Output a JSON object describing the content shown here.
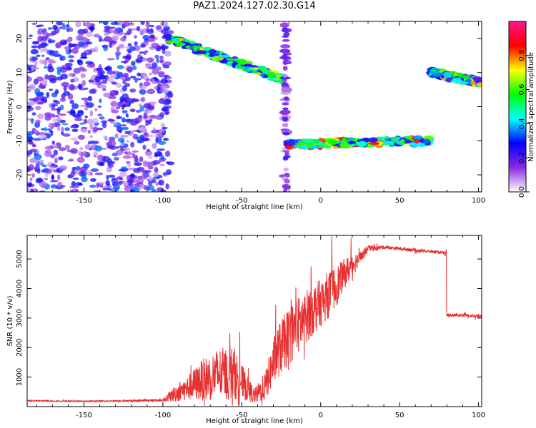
{
  "page_title": "PAZ1.2024.127.02.30.G14",
  "chart_data": [
    {
      "type": "heatmap",
      "title": "PAZ1.2024.127.02.30.G14",
      "xlabel": "Height of straight line (km)",
      "ylabel": "Frequency (Hz)",
      "xlim": [
        -186,
        102
      ],
      "ylim": [
        -25,
        25
      ],
      "xticks": [
        -150,
        -100,
        -50,
        0,
        50,
        100
      ],
      "yticks": [
        -20,
        -10,
        0,
        10,
        20
      ],
      "grid": false,
      "colorbar": {
        "label": "Normalized spectral amplitude",
        "range": [
          0,
          1
        ],
        "ticks": [
          0.0,
          0.2,
          0.4,
          0.6,
          0.8
        ],
        "colormap": [
          "#ffffff",
          "#8a2be2",
          "#0000ff",
          "#00ffff",
          "#00ff00",
          "#ffff00",
          "#ff0000",
          "#ff1493"
        ]
      },
      "features": [
        {
          "region": "scattered noise",
          "x": [
            -186,
            -95
          ],
          "freq": [
            -25,
            25
          ],
          "amplitude": 0.25
        },
        {
          "region": "descending track",
          "x": [
            -97,
            -23
          ],
          "freq": [
            20,
            8
          ],
          "amplitude": 0.75
        },
        {
          "region": "vertical streak",
          "x": [
            -22,
            -22
          ],
          "freq": [
            -25,
            25
          ],
          "amplitude": 0.2
        },
        {
          "region": "horizontal track",
          "x": [
            -22,
            70
          ],
          "freq": [
            -11,
            -10
          ],
          "amplitude": 0.85
        },
        {
          "region": "upper-right track",
          "x": [
            70,
            102
          ],
          "freq": [
            10,
            7
          ],
          "amplitude": 0.75
        }
      ]
    },
    {
      "type": "line",
      "xlabel": "Height of straight line (km)",
      "ylabel": "SNR (10 * v/v)",
      "xlim": [
        -186,
        102
      ],
      "ylim": [
        0,
        5800
      ],
      "xticks": [
        -150,
        -100,
        -50,
        0,
        50,
        100
      ],
      "yticks": [
        1000,
        2000,
        3000,
        4000,
        5000
      ],
      "grid": false,
      "color": "#e83030",
      "x": [
        -186,
        -150,
        -120,
        -100,
        -92,
        -85,
        -75,
        -65,
        -55,
        -48,
        -42,
        -35,
        -28,
        -20,
        -15,
        -10,
        -5,
        0,
        5,
        10,
        15,
        20,
        25,
        30,
        40,
        50,
        60,
        70,
        79,
        80,
        90,
        102
      ],
      "y": [
        200,
        180,
        200,
        220,
        450,
        600,
        900,
        1100,
        1150,
        700,
        350,
        700,
        1800,
        2400,
        2700,
        3000,
        3300,
        3500,
        3800,
        4100,
        4500,
        4800,
        5050,
        5350,
        5400,
        5350,
        5300,
        5250,
        5200,
        3100,
        3100,
        3050
      ],
      "noise": [
        20,
        20,
        25,
        40,
        300,
        400,
        700,
        900,
        900,
        500,
        250,
        500,
        900,
        1000,
        1000,
        900,
        900,
        800,
        800,
        700,
        500,
        400,
        200,
        120,
        60,
        60,
        60,
        50,
        50,
        60,
        50,
        50
      ]
    }
  ]
}
